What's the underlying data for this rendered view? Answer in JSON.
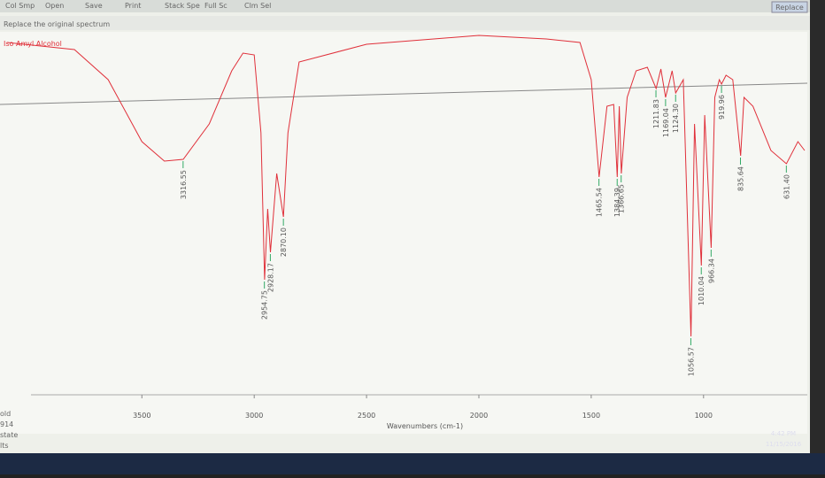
{
  "ui": {
    "toolbar": [
      "Col Smp",
      "Open",
      "Save",
      "Print",
      "Stack Spe",
      "Full Sc",
      "Clm Sel"
    ],
    "replace_button": "Replace",
    "status": "Replace the original spectrum",
    "left_labels": [
      "old",
      "914",
      "state",
      "lts"
    ],
    "time": "4:42 PM",
    "date": "11/15/2016"
  },
  "chart_data": {
    "type": "line",
    "title": "Iso Amyl Alcohol",
    "x_label": "Wavenumbers (cm-1)",
    "xlim": [
      4100,
      550
    ],
    "xticks": [
      3500,
      3000,
      2500,
      2000,
      1500,
      1000
    ],
    "ylim": [
      0,
      100
    ],
    "series": [
      {
        "name": "Iso Amyl Alcohol",
        "color": "#e0303a",
        "x": [
          4100,
          3800,
          3650,
          3500,
          3400,
          3316,
          3200,
          3100,
          3050,
          3000,
          2970,
          2954,
          2940,
          2928,
          2900,
          2870,
          2850,
          2800,
          2500,
          2000,
          1700,
          1550,
          1500,
          1465,
          1430,
          1400,
          1384,
          1375,
          1366,
          1340,
          1300,
          1250,
          1211,
          1190,
          1169,
          1140,
          1124,
          1090,
          1056,
          1040,
          1010,
          995,
          966,
          950,
          930,
          920,
          900,
          870,
          835,
          820,
          780,
          700,
          631,
          580,
          550
        ],
        "values": [
          98,
          96,
          87.5,
          70,
          64.5,
          65,
          75,
          90,
          95,
          94.5,
          72.5,
          31,
          51,
          38.75,
          61,
          48.75,
          72.5,
          92.5,
          97.5,
          100,
          99,
          98,
          87.5,
          60,
          80,
          80.5,
          60,
          80,
          61,
          82.5,
          90,
          91,
          85,
          90.5,
          82.5,
          90,
          83.75,
          87.5,
          15,
          75,
          35,
          77.5,
          40,
          82.5,
          87.5,
          86.25,
          88.75,
          87.5,
          66,
          82.5,
          80,
          67.5,
          63.75,
          70,
          67.5
        ]
      }
    ],
    "peaks": {
      "values": [
        3316.55,
        2954.75,
        2928.17,
        2870.1,
        1465.54,
        1384.39,
        1366.65,
        1211.83,
        1169.04,
        1124.3,
        1056.57,
        1010.04,
        966.34,
        919.96,
        835.64,
        631.4
      ],
      "value_labels": [
        "3316.55",
        "2954.75",
        "2928.17",
        "2870.10",
        "1465.54",
        "1384.39",
        "1366.65",
        "1211.83",
        "1169.04",
        "1124.30",
        "1056.57",
        "1010.04",
        "966.34",
        "919.96",
        "835.64",
        "631.40"
      ],
      "depth": [
        65,
        31,
        38.75,
        48.75,
        60,
        60,
        61,
        85,
        82.5,
        83.75,
        15,
        35,
        40,
        86.25,
        66,
        63.75
      ]
    }
  }
}
